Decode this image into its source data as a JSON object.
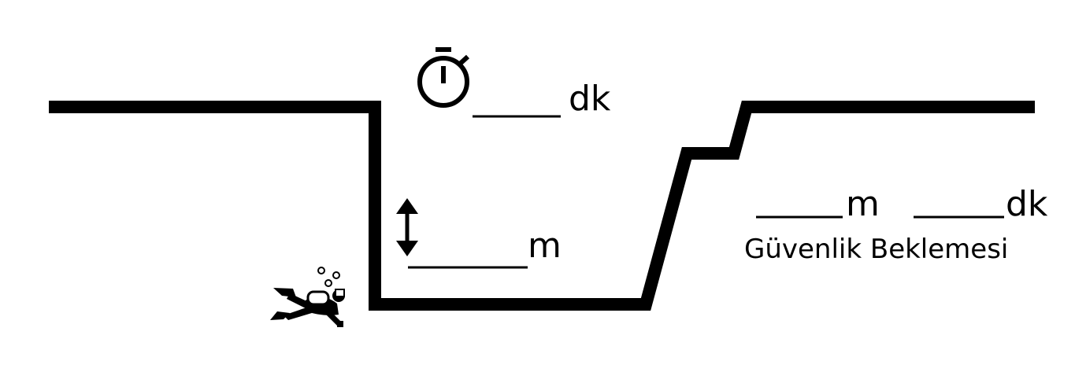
{
  "colors": {
    "line": "#000000",
    "background": "#ffffff"
  },
  "bottom_time": {
    "icon": "stopwatch-icon",
    "unit": "dk"
  },
  "depth": {
    "icon": "double-arrow-vertical-icon",
    "unit": "m"
  },
  "safety_stop": {
    "depth_unit": "m",
    "time_unit": "dk",
    "caption": "Güvenlik Beklemesi"
  },
  "diver": {
    "icon": "scuba-diver-icon"
  }
}
